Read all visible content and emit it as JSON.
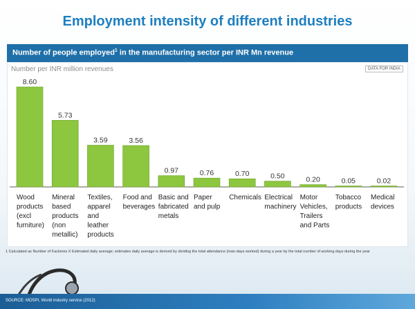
{
  "title": "Employment intensity of different industries",
  "header": {
    "text_before": "Number of people employed",
    "superscript": "1",
    "text_after": " in the manufacturing sector per INR Mn revenue"
  },
  "data_tag": "DATA FOR INDIA",
  "footnote": "1 Calculated as Number of Factories X Estimated daily average; estimates daily average is derived by dividing the total attendance (man-days worked) during a year by the total number of working days during the year",
  "source": "SOURCE: MOSPI, World industry service (2012)",
  "colors": {
    "bar": "#8dc63f",
    "bar_border": "#6ea32c",
    "title": "#1d7fbf",
    "header": "#1f6fa8"
  },
  "chart_data": {
    "type": "bar",
    "title": "",
    "ylabel": "Number per INR million revenues",
    "xlabel": "",
    "ylim": [
      0,
      9
    ],
    "categories": [
      [
        "Wood",
        "products",
        "(excl",
        "furniture)"
      ],
      [
        "Mineral",
        "based",
        "products",
        "(non",
        "metallic)"
      ],
      [
        "Textiles,",
        "apparel",
        "and",
        "leather",
        "products"
      ],
      [
        "Food and",
        "beverages"
      ],
      [
        "Basic and",
        "fabricated",
        "metals"
      ],
      [
        "Paper",
        "and pulp"
      ],
      [
        "Chemicals"
      ],
      [
        "Electrical",
        "machinery"
      ],
      [
        "Motor",
        "Vehicles,",
        "Trailers",
        "and Parts"
      ],
      [
        "Tobacco",
        "products"
      ],
      [
        "Medical",
        "devices"
      ]
    ],
    "values": [
      8.6,
      5.73,
      3.59,
      3.56,
      0.97,
      0.76,
      0.7,
      0.5,
      0.2,
      0.05,
      0.02
    ],
    "value_labels": [
      "8.60",
      "5.73",
      "3.59",
      "3.56",
      "0.97",
      "0.76",
      "0.70",
      "0.50",
      "0.20",
      "0.05",
      "0.02"
    ]
  }
}
